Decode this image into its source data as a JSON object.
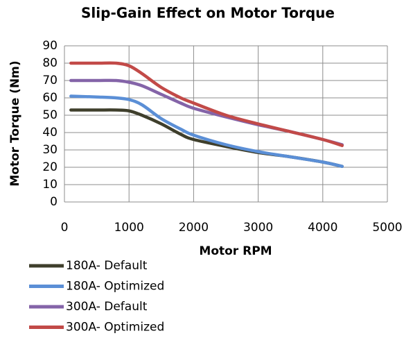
{
  "chart_data": {
    "type": "line",
    "title": "Slip-Gain Effect on Motor Torque",
    "x_label": "Motor RPM",
    "y_label": "Motor Torque (Nm)",
    "x": [
      100,
      500,
      800,
      1000,
      1200,
      1500,
      1800,
      2000,
      2500,
      3000,
      3500,
      4000,
      4300
    ],
    "series": [
      {
        "name": "180A- Default",
        "color": "#3f3f2c",
        "values": [
          53,
          53,
          53,
          52.5,
          50,
          45,
          39,
          36,
          32,
          28.5,
          26,
          23,
          20.5
        ]
      },
      {
        "name": "180A- Optimized",
        "color": "#5b8fd6",
        "values": [
          61,
          60.5,
          60,
          59,
          56,
          48,
          42,
          38.5,
          33,
          29,
          26,
          23,
          20.5
        ]
      },
      {
        "name": "300A- Default",
        "color": "#8464a8",
        "values": [
          70,
          70,
          70,
          69,
          67,
          62,
          57,
          54,
          49,
          44.5,
          40.5,
          36,
          33
        ]
      },
      {
        "name": "300A- Optimized",
        "color": "#c24a48",
        "values": [
          80,
          80,
          80,
          78.5,
          74,
          66,
          60,
          57,
          50,
          45,
          40.5,
          36,
          32.5
        ]
      }
    ],
    "xlim": [
      0,
      5000
    ],
    "xticks": [
      0,
      1000,
      2000,
      3000,
      4000,
      5000
    ],
    "ylim": [
      0,
      90
    ],
    "yticks": [
      0,
      10,
      20,
      30,
      40,
      50,
      60,
      70,
      80,
      90
    ],
    "grid": true,
    "legend": "bottom-left"
  }
}
